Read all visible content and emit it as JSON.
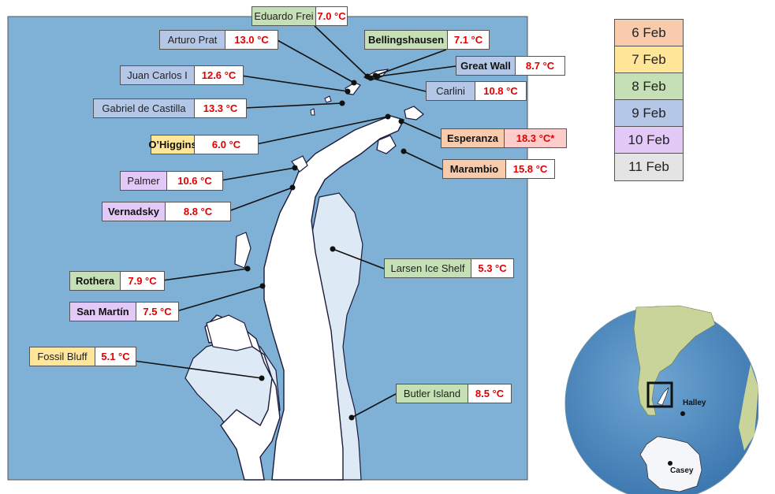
{
  "legend": [
    {
      "label": "6 Feb",
      "color": "#f8cbad"
    },
    {
      "label": "7 Feb",
      "color": "#ffe699"
    },
    {
      "label": "8 Feb",
      "color": "#c5e0b4"
    },
    {
      "label": "9 Feb",
      "color": "#b4c7e7"
    },
    {
      "label": "10 Feb",
      "color": "#e3c9f7"
    },
    {
      "label": "11 Feb",
      "color": "#e4e4e4"
    }
  ],
  "stations": [
    {
      "name": "Eduardo Frei",
      "temp": "7.0 °C",
      "date": 2
    },
    {
      "name": "Arturo Prat",
      "temp": "13.0 °C",
      "date": 3
    },
    {
      "name": "Bellingshausen",
      "temp": "7.1 °C",
      "date": 2
    },
    {
      "name": "Juan Carlos I",
      "temp": "12.6 °C",
      "date": 3
    },
    {
      "name": "Great Wall",
      "temp": "8.7 °C",
      "date": 3
    },
    {
      "name": "Carlini",
      "temp": "10.8 °C",
      "date": 3
    },
    {
      "name": "Gabriel de Castilla",
      "temp": "13.3 °C",
      "date": 3
    },
    {
      "name": "O’Higgins",
      "temp": "6.0 °C",
      "date": 1
    },
    {
      "name": "Esperanza",
      "temp": "18.3 °C*",
      "date": 0,
      "temp_highlight": "#ffcccc"
    },
    {
      "name": "Marambio",
      "temp": "15.8 °C",
      "date": 0
    },
    {
      "name": "Palmer",
      "temp": "10.6 °C",
      "date": 4
    },
    {
      "name": "Vernadsky",
      "temp": "8.8 °C",
      "date": 4
    },
    {
      "name": "Larsen Ice Shelf",
      "temp": "5.3 °C",
      "date": 2
    },
    {
      "name": "Rothera",
      "temp": "7.9 °C",
      "date": 2
    },
    {
      "name": "San Martín",
      "temp": "7.5 °C",
      "date": 4
    },
    {
      "name": "Fossil Bluff",
      "temp": "5.1 °C",
      "date": 1
    },
    {
      "name": "Butler Island",
      "temp": "8.5 °C",
      "date": 2
    }
  ],
  "globe": {
    "labels": [
      "Halley",
      "Casey"
    ]
  },
  "colors": {
    "ocean": "#7fb0d5",
    "land": "#ffffff",
    "ice_shelf": "#dde9f5",
    "temp": "#e00000"
  }
}
